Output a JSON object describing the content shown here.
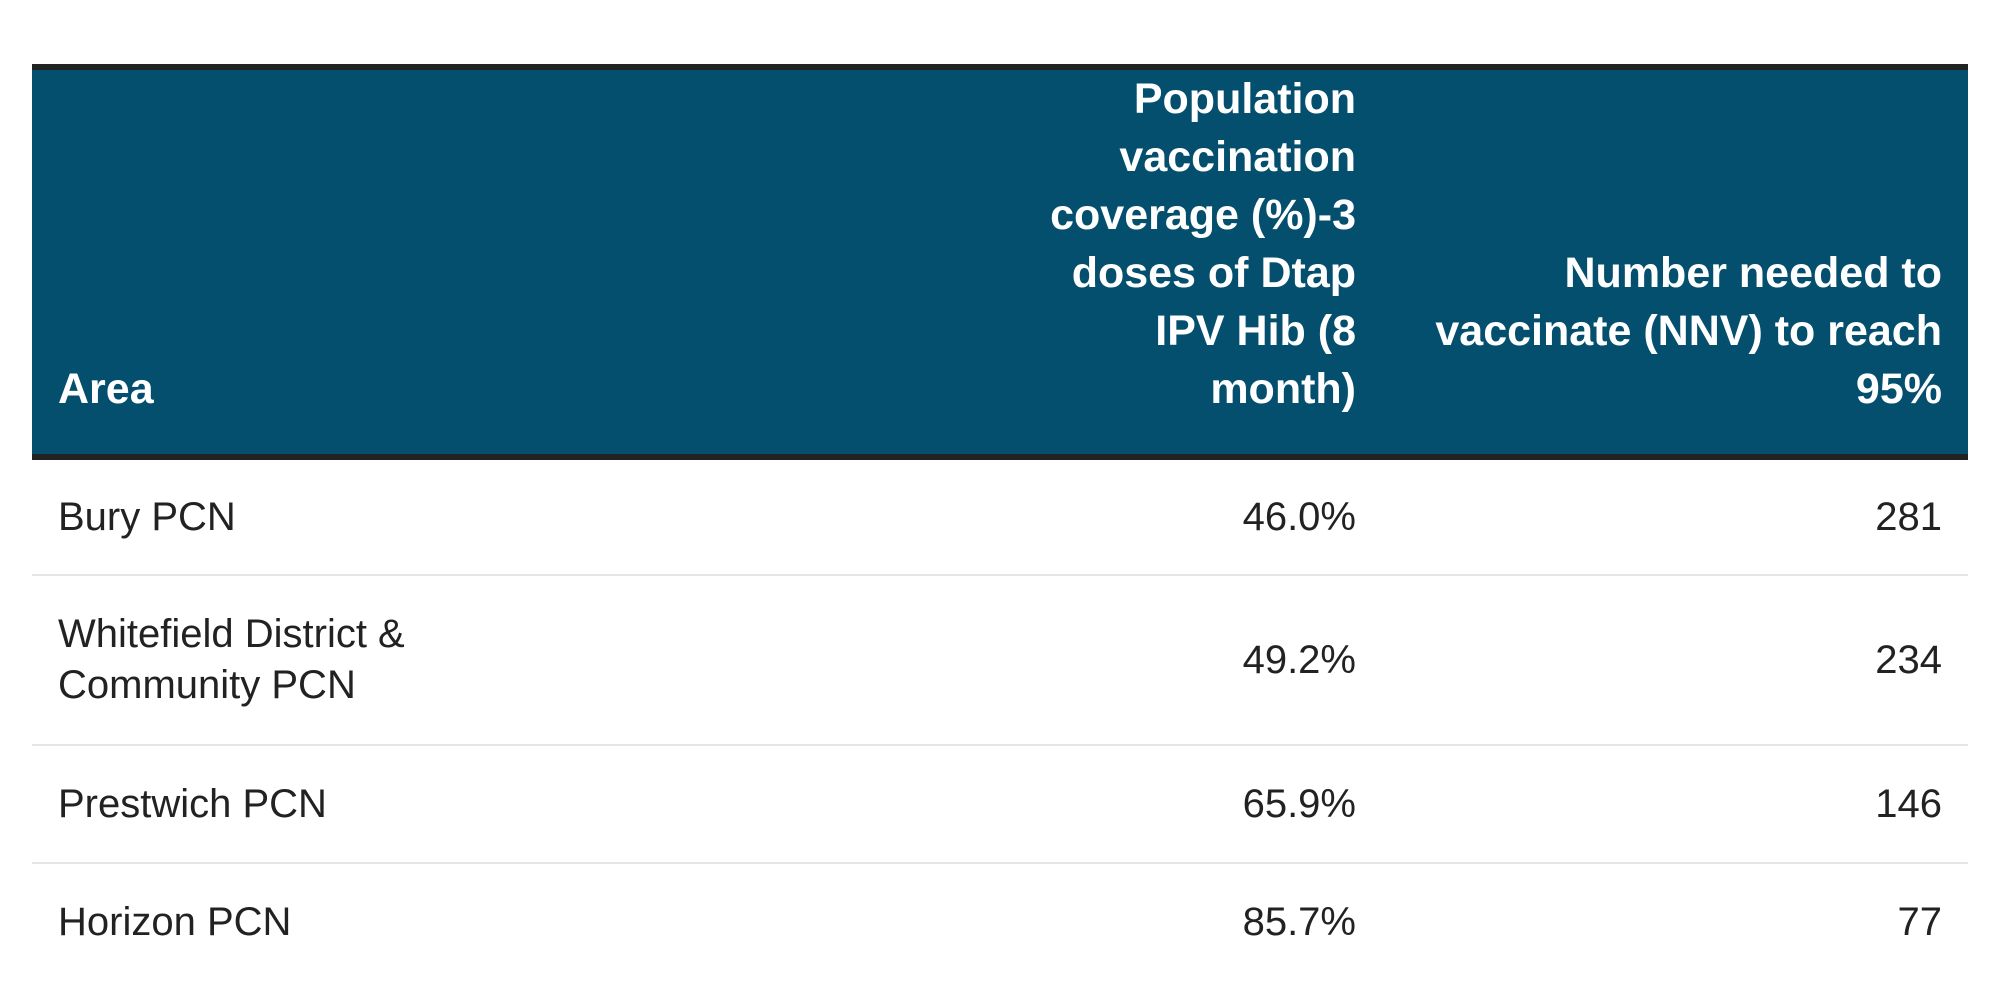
{
  "chart_data": {
    "type": "table",
    "columns": [
      "Area",
      "Population vaccination coverage (%)-3 doses of Dtap IPV Hib (8 month)",
      "Number needed to vaccinate (NNV) to reach 95%"
    ],
    "rows": [
      {
        "area": "Bury PCN",
        "coverage": "46.0%",
        "nnv": "281"
      },
      {
        "area": "Whitefield District & Community PCN",
        "coverage": "49.2%",
        "nnv": "234"
      },
      {
        "area": "Prestwich PCN",
        "coverage": "65.9%",
        "nnv": "146"
      },
      {
        "area": "Horizon PCN",
        "coverage": "85.7%",
        "nnv": "77"
      }
    ]
  },
  "colors": {
    "header_background": "#054f6e",
    "header_text": "#ffffff",
    "body_text": "#222222",
    "header_rule": "#222222",
    "row_divider": "#e6e6e6"
  }
}
